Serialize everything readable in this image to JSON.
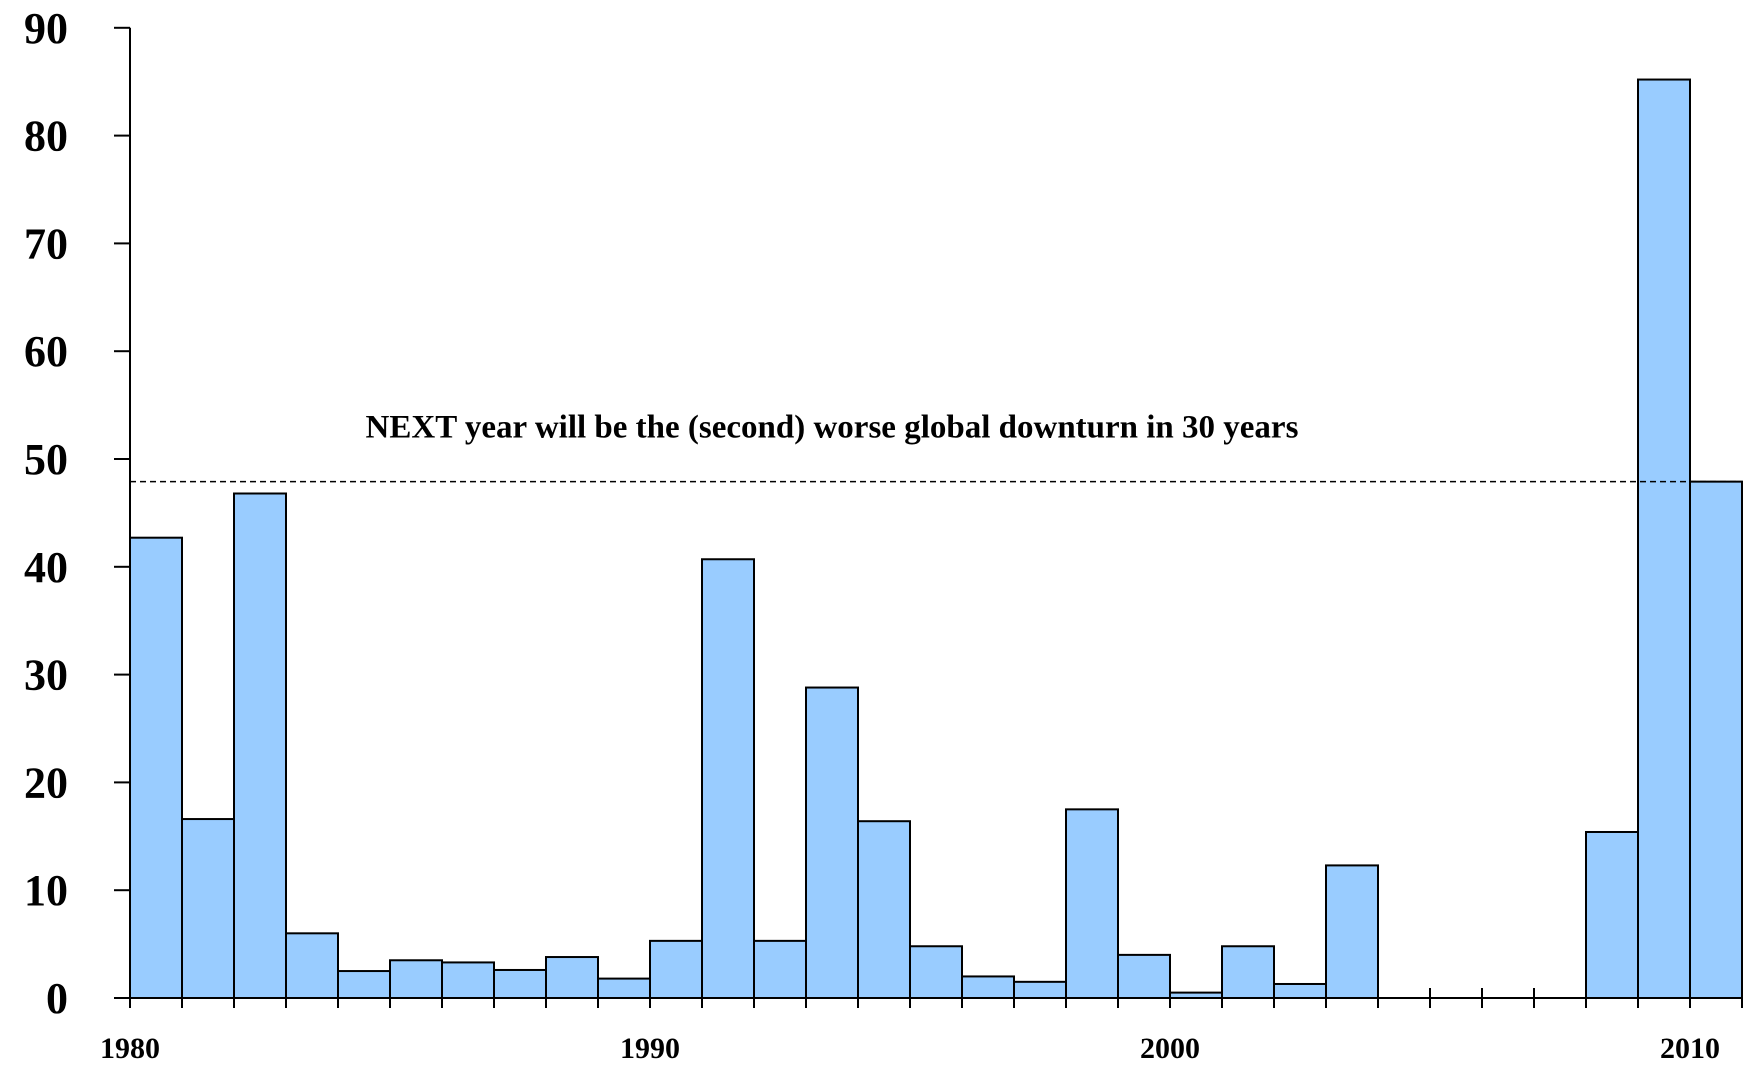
{
  "chart_data": {
    "type": "bar",
    "title": "",
    "xlabel": "",
    "ylabel": "",
    "x": [
      1980,
      1981,
      1982,
      1983,
      1984,
      1985,
      1986,
      1987,
      1988,
      1989,
      1990,
      1991,
      1992,
      1993,
      1994,
      1995,
      1996,
      1997,
      1998,
      1999,
      2000,
      2001,
      2002,
      2003,
      2004,
      2005,
      2006,
      2007,
      2008,
      2009,
      2010
    ],
    "values": [
      42.7,
      16.6,
      46.8,
      6.0,
      2.5,
      3.5,
      3.3,
      2.6,
      3.8,
      1.8,
      5.3,
      40.7,
      5.3,
      28.8,
      16.4,
      4.8,
      2.0,
      1.5,
      17.5,
      4.0,
      0.5,
      4.8,
      1.3,
      12.3,
      null,
      null,
      null,
      null,
      15.4,
      85.2,
      47.9
    ],
    "ylim": [
      0,
      90
    ],
    "y_ticks": [
      "0",
      "10",
      "20",
      "30",
      "40",
      "50",
      "60",
      "70",
      "80",
      "90"
    ],
    "x_tick_labels": [
      {
        "year": 1980,
        "label": "1980"
      },
      {
        "year": 1990,
        "label": "1990"
      },
      {
        "year": 2000,
        "label": "2000"
      },
      {
        "year": 2010,
        "label": "2010"
      }
    ],
    "reference_line": {
      "value": 47.9,
      "style": "dashed"
    },
    "annotation": {
      "text": "NEXT year will be the (second) worse global downturn in 30 years",
      "year": 1993.5,
      "value": 52
    },
    "bar_color": "#99ccff",
    "bar_stroke": "#000000",
    "grid": false,
    "legend": "none"
  }
}
